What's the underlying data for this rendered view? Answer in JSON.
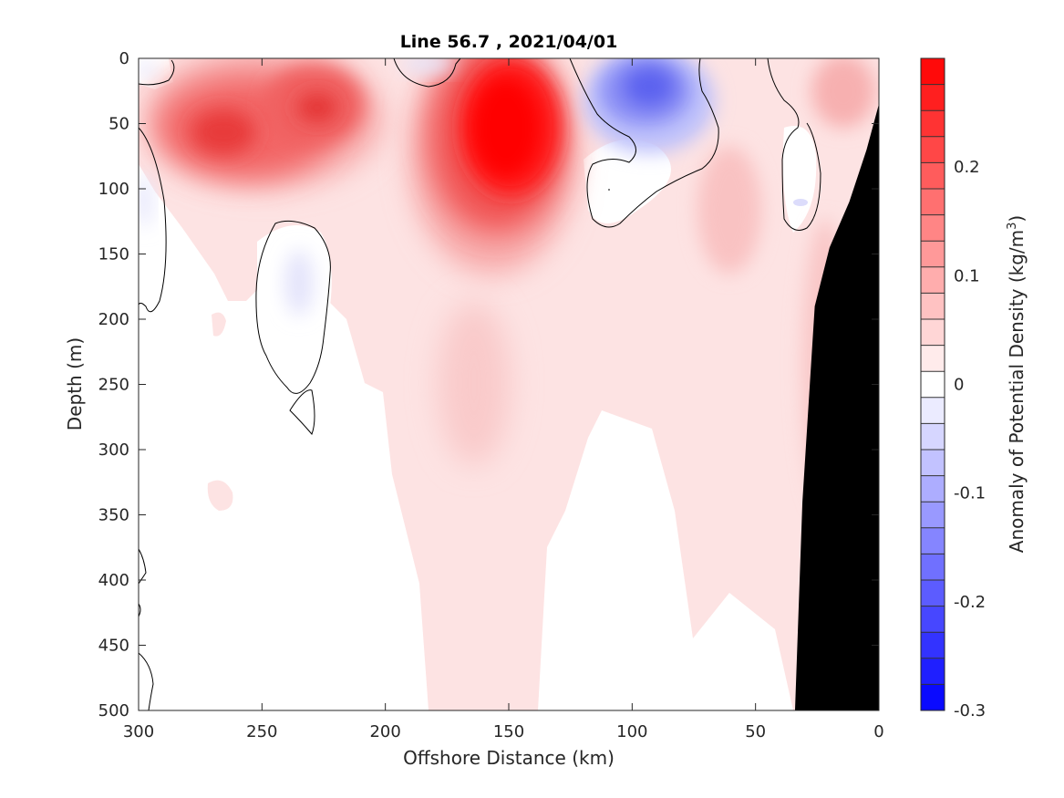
{
  "chart_data": {
    "type": "heatmap",
    "title": "Line 56.7 , 2021/04/01",
    "xlabel": "Offshore Distance (km)",
    "ylabel": "Depth (m)",
    "xlim": [
      300,
      0
    ],
    "ylim": [
      0,
      500
    ],
    "x_reversed": true,
    "y_reversed": true,
    "x_ticks": [
      "300",
      "250",
      "200",
      "150",
      "100",
      "50",
      "0"
    ],
    "y_ticks": [
      "0",
      "50",
      "100",
      "150",
      "200",
      "250",
      "300",
      "350",
      "400",
      "450",
      "500"
    ],
    "colorbar": {
      "label": "Anomaly of Potential Density (kg/m",
      "label_sup": "3",
      "label_end": ")",
      "range": [
        -0.3,
        0.3
      ],
      "ticks": [
        "0.2",
        "0.1",
        "0",
        "-0.1",
        "-0.2",
        "-0.3"
      ],
      "tick_values": [
        0.2,
        0.1,
        0,
        -0.1,
        -0.2,
        -0.3
      ],
      "levels": 25,
      "negative_color": "#0000ff",
      "positive_color": "#ff0000",
      "zero_color": "#ffffff"
    },
    "grid": false,
    "bathymetry_color": "#000000",
    "anomaly_features": [
      {
        "kind": "positive",
        "x": 250,
        "depth": 55,
        "value": 0.22
      },
      {
        "kind": "positive",
        "x": 215,
        "depth": 40,
        "value": 0.2
      },
      {
        "kind": "positive",
        "x": 150,
        "depth": 60,
        "value": 0.3
      },
      {
        "kind": "negative",
        "x": 95,
        "depth": 30,
        "value": -0.14
      },
      {
        "kind": "negative",
        "x": 240,
        "depth": 175,
        "value": -0.03
      },
      {
        "kind": "positive",
        "x": 15,
        "depth": 10,
        "value": 0.08
      },
      {
        "kind": "positive",
        "x": 55,
        "depth": 120,
        "value": 0.07
      }
    ],
    "bathymetry": [
      {
        "x": 34,
        "depth": 500
      },
      {
        "x": 31,
        "depth": 340
      },
      {
        "x": 26,
        "depth": 190
      },
      {
        "x": 20,
        "depth": 145
      },
      {
        "x": 12,
        "depth": 110
      },
      {
        "x": 5,
        "depth": 70
      },
      {
        "x": 0,
        "depth": 35
      }
    ]
  }
}
